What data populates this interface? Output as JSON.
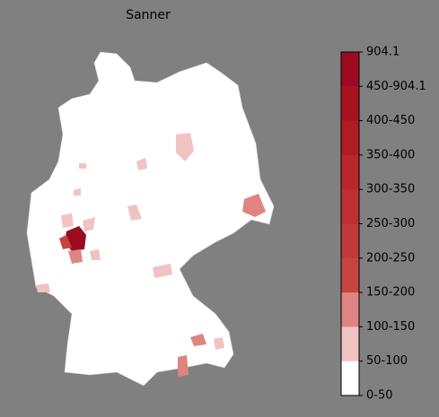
{
  "title": "Sanner",
  "legend": {
    "labels": [
      "904.1",
      "450-904.1",
      "400-450",
      "350-400",
      "300-350",
      "250-300",
      "200-250",
      "150-200",
      "100-150",
      "50-100",
      "0-50"
    ],
    "colors": [
      "#9b0b20",
      "#a8121f",
      "#b01c24",
      "#b8272a",
      "#bd2f31",
      "#c23a38",
      "#c7443f",
      "#de8481",
      "#f0c3c2",
      "#ffffff"
    ]
  }
}
